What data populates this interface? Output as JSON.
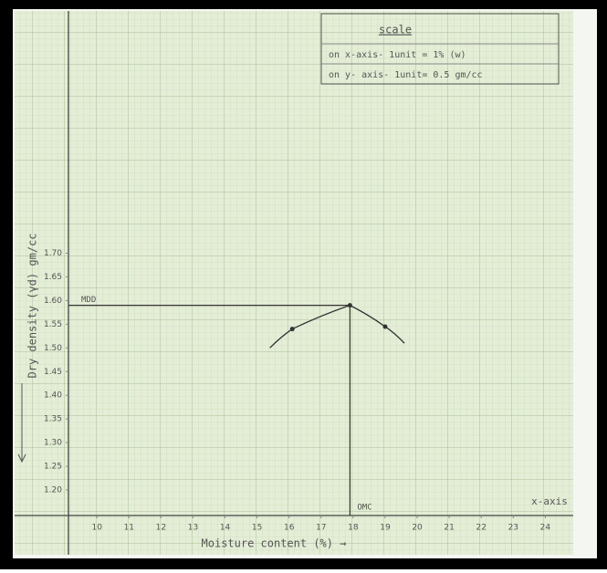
{
  "chart_data": {
    "type": "line",
    "scale_title": "scale",
    "scale_lines": [
      "on x-axis- 1unit = 1% (w)",
      "on y- axis- 1unit= 0.5 gm/cc"
    ],
    "y_label": "Dry density (γd) gm/cc",
    "x_label": "Moisture content (%) →",
    "x_axis_note": "x-axis",
    "annotations": [
      "MDD",
      "OMC"
    ],
    "x": [
      15.4,
      16.1,
      17.9,
      19.0,
      19.6
    ],
    "values": [
      1.5,
      1.54,
      1.59,
      1.545,
      1.51
    ],
    "color": "#333333",
    "xlim": [
      9.11,
      24.93
    ],
    "ylim": [
      1.146,
      2.206
    ],
    "xticks": [
      10,
      11,
      12,
      13,
      14,
      15,
      16,
      17,
      18,
      19,
      20,
      21,
      22,
      23,
      24
    ],
    "yticks": [
      {
        "value": 1.2,
        "label": "1.20"
      },
      1.25,
      {
        "value": 1.3,
        "label": "1.30"
      },
      1.35,
      {
        "value": 1.4,
        "label": "1.40"
      },
      1.45,
      {
        "value": 1.5,
        "label": "1.50"
      },
      1.55,
      {
        "value": 1.6,
        "label": "1.60"
      },
      1.65,
      {
        "value": 1.7,
        "label": "1.70"
      }
    ]
  }
}
